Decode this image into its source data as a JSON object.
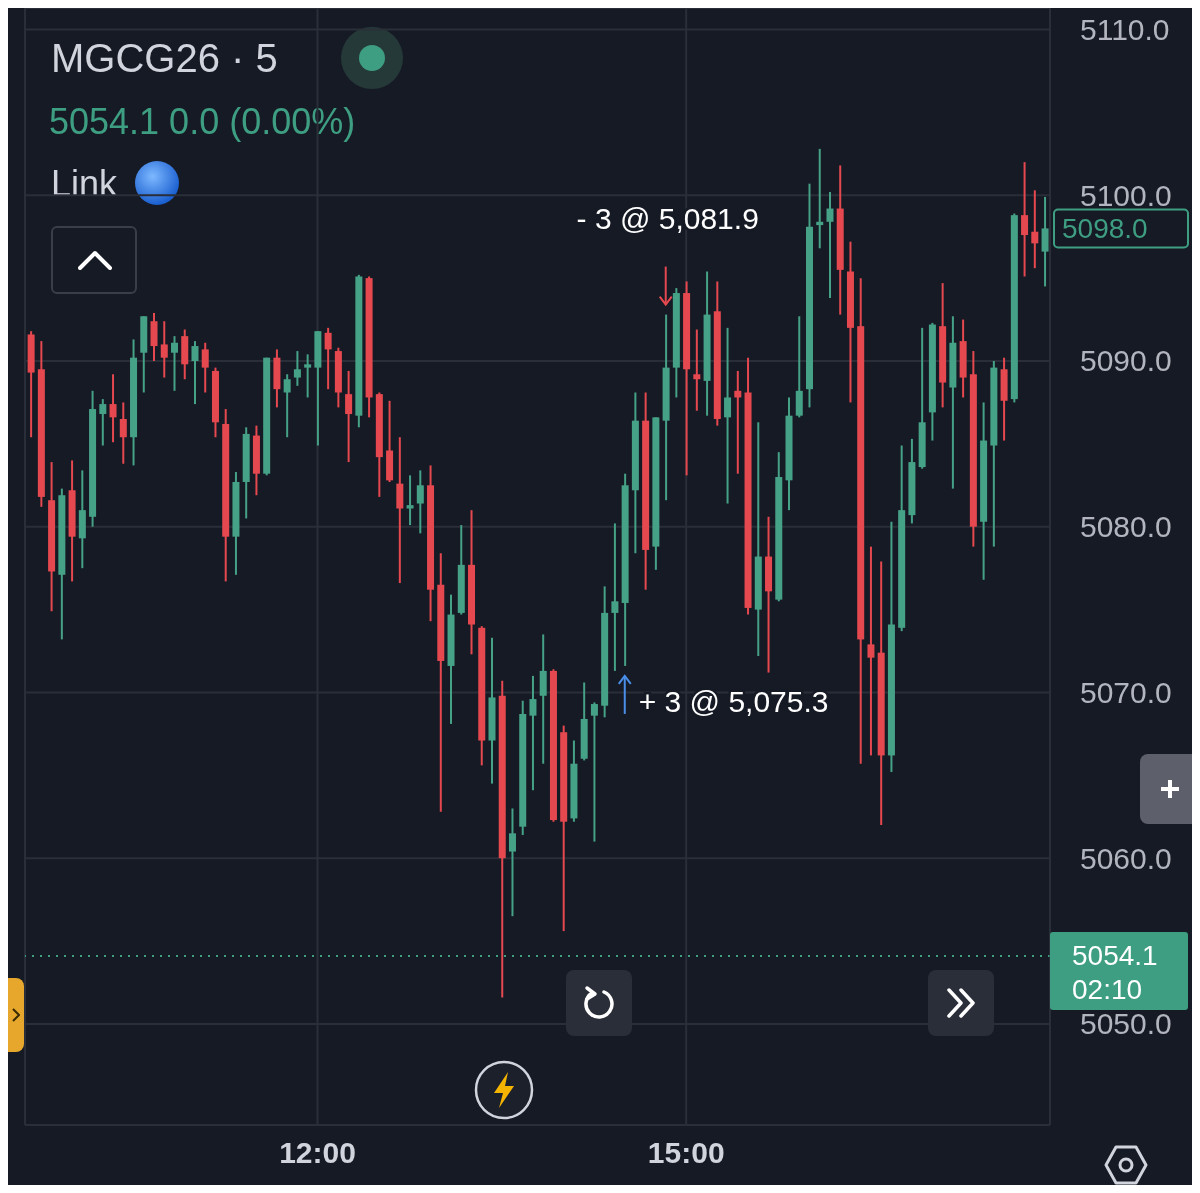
{
  "chart_data": {
    "type": "candlestick",
    "title": "MGCG26 · 5",
    "subtitle": "5054.1 0.0 (0.00%)",
    "x": [
      9.6667,
      9.75,
      9.8333,
      9.9167,
      10,
      10.0833,
      10.1667,
      10.25,
      10.3333,
      10.4167,
      10.5,
      10.5833,
      10.6667,
      10.75,
      10.8333,
      10.9167,
      11,
      11.0833,
      11.1667,
      11.25,
      11.3333,
      11.4167,
      11.5,
      11.5833,
      11.6667,
      11.75,
      11.8333,
      11.9167,
      12,
      12.0833,
      12.1667,
      12.25,
      12.3333,
      12.4167,
      12.5,
      12.5833,
      12.6667,
      12.75,
      12.8333,
      12.9167,
      13,
      13.0833,
      13.1667,
      13.25,
      13.3333,
      13.4167,
      13.5,
      13.5833,
      13.6667,
      13.75,
      13.8333,
      13.9167,
      14,
      14.0833,
      14.1667,
      14.25,
      14.3333,
      14.4167,
      14.5,
      14.5833,
      14.6667,
      14.75,
      14.8333,
      14.9167,
      15,
      15.0833,
      15.1667,
      15.25,
      15.3333,
      15.4167,
      15.5,
      15.5833,
      15.6667,
      15.75,
      15.8333,
      15.9167,
      16,
      16.0833,
      16.1667,
      16.25,
      16.3333,
      16.4167,
      16.5,
      16.5833,
      16.6667,
      16.75,
      16.8333,
      16.9167,
      17,
      17.0833,
      17.1667,
      17.25,
      17.3333,
      17.4167,
      17.5,
      17.5833,
      17.6667,
      17.75,
      17.8333,
      17.9167
    ],
    "ohlc": [
      [
        5091.6,
        5091.8,
        5085.4,
        5089.3
      ],
      [
        5089.5,
        5091.2,
        5081.2,
        5081.8
      ],
      [
        5081.6,
        5083.9,
        5074.9,
        5077.3
      ],
      [
        5077.1,
        5082.3,
        5073.2,
        5081.9
      ],
      [
        5082.2,
        5084.0,
        5076.7,
        5079.4
      ],
      [
        5079.3,
        5083.4,
        5077.5,
        5081.0
      ],
      [
        5080.6,
        5088.2,
        5080.0,
        5087.1
      ],
      [
        5086.8,
        5087.7,
        5084.9,
        5087.4
      ],
      [
        5087.4,
        5089.2,
        5085.1,
        5086.6
      ],
      [
        5086.5,
        5087.5,
        5083.8,
        5085.4
      ],
      [
        5085.4,
        5091.3,
        5083.7,
        5090.2
      ],
      [
        5090.5,
        5092.7,
        5088.1,
        5092.7
      ],
      [
        5092.4,
        5092.9,
        5090.0,
        5090.9
      ],
      [
        5091.0,
        5092.4,
        5089.0,
        5090.2
      ],
      [
        5090.5,
        5091.5,
        5088.2,
        5091.1
      ],
      [
        5091.5,
        5091.9,
        5088.9,
        5089.8
      ],
      [
        5090.0,
        5091.2,
        5087.4,
        5090.9
      ],
      [
        5090.7,
        5091.1,
        5088.1,
        5089.6
      ],
      [
        5089.4,
        5089.6,
        5085.4,
        5086.3
      ],
      [
        5086.2,
        5087.1,
        5076.7,
        5079.4
      ],
      [
        5079.4,
        5083.3,
        5077.1,
        5082.7
      ],
      [
        5082.7,
        5086.0,
        5080.5,
        5085.6
      ],
      [
        5085.5,
        5086.1,
        5081.9,
        5083.2
      ],
      [
        5083.2,
        5090.2,
        5083.1,
        5090.2
      ],
      [
        5090.2,
        5090.7,
        5087.2,
        5088.3
      ],
      [
        5088.1,
        5089.2,
        5085.4,
        5088.9
      ],
      [
        5089.0,
        5090.6,
        5088.5,
        5089.5
      ],
      [
        5089.6,
        5090.4,
        5087.8,
        5089.8
      ],
      [
        5089.6,
        5091.8,
        5084.9,
        5091.8
      ],
      [
        5091.7,
        5092.0,
        5088.3,
        5090.7
      ],
      [
        5090.6,
        5090.8,
        5087.2,
        5088.1
      ],
      [
        5088.0,
        5089.4,
        5083.9,
        5086.8
      ],
      [
        5086.7,
        5095.2,
        5086.0,
        5095.1
      ],
      [
        5095.0,
        5095.1,
        5086.6,
        5087.8
      ],
      [
        5088.0,
        5088.1,
        5081.8,
        5084.2
      ],
      [
        5084.6,
        5087.6,
        5082.7,
        5082.8
      ],
      [
        5082.6,
        5085.4,
        5076.6,
        5081.1
      ],
      [
        5081.1,
        5083.1,
        5080.1,
        5081.3
      ],
      [
        5081.4,
        5083.4,
        5079.6,
        5082.5
      ],
      [
        5082.5,
        5083.7,
        5074.3,
        5076.2
      ],
      [
        5076.5,
        5078.4,
        5062.8,
        5071.9
      ],
      [
        5071.6,
        5075.9,
        5068.1,
        5074.7
      ],
      [
        5074.8,
        5080.1,
        5074.7,
        5077.7
      ],
      [
        5077.7,
        5081.0,
        5072.3,
        5074.1
      ],
      [
        5073.9,
        5074.0,
        5065.6,
        5067.1
      ],
      [
        5067.1,
        5073.3,
        5064.5,
        5069.7
      ],
      [
        5069.8,
        5070.7,
        5051.6,
        5060.0
      ],
      [
        5060.4,
        5063.0,
        5056.5,
        5061.5
      ],
      [
        5061.9,
        5069.5,
        5061.4,
        5068.7
      ],
      [
        5068.6,
        5071.0,
        5064.1,
        5069.6
      ],
      [
        5069.8,
        5073.5,
        5065.7,
        5071.3
      ],
      [
        5071.3,
        5071.4,
        5062.2,
        5062.3
      ],
      [
        5067.6,
        5068.0,
        5055.6,
        5062.2
      ],
      [
        5062.4,
        5067.1,
        5062.2,
        5065.7
      ],
      [
        5066.0,
        5070.6,
        5065.9,
        5068.4
      ],
      [
        5068.6,
        5069.4,
        5061.0,
        5069.3
      ],
      [
        5069.2,
        5076.4,
        5068.5,
        5074.8
      ],
      [
        5074.8,
        5080.2,
        5071.3,
        5075.5
      ],
      [
        5075.4,
        5083.2,
        5071.6,
        5082.5
      ],
      [
        5082.2,
        5088.1,
        5078.4,
        5086.4
      ],
      [
        5086.4,
        5088.1,
        5076.2,
        5078.6
      ],
      [
        5078.8,
        5086.6,
        5077.4,
        5086.6
      ],
      [
        5086.4,
        5092.8,
        5081.6,
        5089.6
      ],
      [
        5089.6,
        5094.4,
        5087.8,
        5094.1
      ],
      [
        5094.1,
        5094.8,
        5083.1,
        5089.5
      ],
      [
        5089.2,
        5091.9,
        5087.0,
        5088.9
      ],
      [
        5088.8,
        5095.4,
        5086.7,
        5092.8
      ],
      [
        5093.0,
        5094.8,
        5086.1,
        5086.5
      ],
      [
        5086.6,
        5092.0,
        5081.4,
        5087.8
      ],
      [
        5088.2,
        5089.4,
        5083.2,
        5087.8
      ],
      [
        5088.1,
        5090.2,
        5074.7,
        5075.1
      ],
      [
        5075.0,
        5086.3,
        5072.2,
        5078.2
      ],
      [
        5078.2,
        5080.6,
        5071.2,
        5076.1
      ],
      [
        5075.6,
        5084.5,
        5075.5,
        5083.0
      ],
      [
        5082.8,
        5087.8,
        5081.0,
        5086.7
      ],
      [
        5086.7,
        5092.7,
        5086.6,
        5088.2
      ],
      [
        5088.3,
        5100.7,
        5087.2,
        5098.1
      ],
      [
        5098.2,
        5102.8,
        5096.8,
        5098.4
      ],
      [
        5098.4,
        5100.2,
        5093.8,
        5099.2
      ],
      [
        5099.2,
        5101.8,
        5092.8,
        5095.5
      ],
      [
        5095.4,
        5097.2,
        5087.5,
        5092.0
      ],
      [
        5092.1,
        5095.0,
        5065.7,
        5073.2
      ],
      [
        5072.9,
        5078.8,
        5066.2,
        5072.1
      ],
      [
        5072.4,
        5077.9,
        5062.0,
        5066.2
      ],
      [
        5066.2,
        5080.3,
        5065.2,
        5074.1
      ],
      [
        5073.9,
        5084.9,
        5073.7,
        5081.0
      ],
      [
        5080.7,
        5085.3,
        5080.2,
        5083.9
      ],
      [
        5083.6,
        5092.0,
        5083.5,
        5086.3
      ],
      [
        5086.9,
        5092.3,
        5085.2,
        5092.2
      ],
      [
        5092.1,
        5094.7,
        5087.2,
        5088.7
      ],
      [
        5088.4,
        5092.7,
        5082.3,
        5091.1
      ],
      [
        5091.2,
        5092.5,
        5087.8,
        5089.0
      ],
      [
        5089.2,
        5090.6,
        5078.8,
        5080.0
      ],
      [
        5080.3,
        5087.5,
        5076.8,
        5085.2
      ],
      [
        5084.9,
        5090.0,
        5078.8,
        5089.6
      ],
      [
        5089.5,
        5090.2,
        5085.2,
        5087.6
      ],
      [
        5087.7,
        5098.9,
        5087.5,
        5098.8
      ],
      [
        5098.8,
        5102.0,
        5095.1,
        5097.6
      ],
      [
        5097.8,
        5100.3,
        5095.6,
        5097.1
      ],
      [
        5096.6,
        5099.9,
        5094.5,
        5098.0
      ]
    ],
    "colors": [
      "#e5494f",
      "#e5494f",
      "#e5494f",
      "#46a287",
      "#e5494f",
      "#46a287",
      "#46a287",
      "#46a287",
      "#e5494f",
      "#e5494f",
      "#46a287",
      "#46a287",
      "#e5494f",
      "#e5494f",
      "#46a287",
      "#e5494f",
      "#46a287",
      "#e5494f",
      "#e5494f",
      "#e5494f",
      "#46a287",
      "#46a287",
      "#e5494f",
      "#46a287",
      "#e5494f",
      "#46a287",
      "#46a287",
      "#46a287",
      "#46a287",
      "#e5494f",
      "#e5494f",
      "#e5494f",
      "#46a287",
      "#e5494f",
      "#e5494f",
      "#e5494f",
      "#e5494f",
      "#46a287",
      "#46a287",
      "#e5494f",
      "#e5494f",
      "#46a287",
      "#46a287",
      "#e5494f",
      "#e5494f",
      "#46a287",
      "#e5494f",
      "#46a287",
      "#46a287",
      "#46a287",
      "#46a287",
      "#e5494f",
      "#e5494f",
      "#46a287",
      "#46a287",
      "#46a287",
      "#46a287",
      "#46a287",
      "#46a287",
      "#46a287",
      "#e5494f",
      "#46a287",
      "#46a287",
      "#46a287",
      "#e5494f",
      "#e5494f",
      "#46a287",
      "#e5494f",
      "#46a287",
      "#e5494f",
      "#e5494f",
      "#46a287",
      "#e5494f",
      "#46a287",
      "#46a287",
      "#46a287",
      "#46a287",
      "#46a287",
      "#46a287",
      "#e5494f",
      "#e5494f",
      "#e5494f",
      "#e5494f",
      "#e5494f",
      "#46a287",
      "#46a287",
      "#46a287",
      "#46a287",
      "#46a287",
      "#e5494f",
      "#46a287",
      "#e5494f",
      "#e5494f",
      "#46a287",
      "#46a287",
      "#e5494f",
      "#46a287",
      "#e5494f",
      "#e5494f",
      "#46a287"
    ],
    "xlim": [
      9.62,
      17.96
    ],
    "xticks": [
      {
        "value": 12,
        "label": "12:00"
      },
      {
        "value": 15,
        "label": "15:00"
      }
    ],
    "ylim": [
      5043.9,
      5111.3
    ],
    "yticks": [
      {
        "value": 5050,
        "label": "5050.0"
      },
      {
        "value": 5060,
        "label": "5060.0"
      },
      {
        "value": 5070,
        "label": "5070.0"
      },
      {
        "value": 5080,
        "label": "5080.0"
      },
      {
        "value": 5090,
        "label": "5090.0"
      },
      {
        "value": 5100,
        "label": "5100.0"
      },
      {
        "value": 5110,
        "label": "5110.0"
      }
    ],
    "grid": true,
    "ref_lines": [
      {
        "axis": "y",
        "value": 5054.1,
        "label": "5054.1",
        "color": "#3e9e82",
        "line_style": "dotted"
      }
    ],
    "annotations": [
      "Link",
      {
        "text": "- 3 @ 5,081.9",
        "x": 14.8333,
        "y": 5092.8
      },
      {
        "text": "+ 3 @ 5,075.3",
        "x": 14.5,
        "y": 5071.6
      },
      {
        "text": "5098.0",
        "x": 17.9167,
        "y": 5098.0
      },
      "02:10"
    ]
  }
}
